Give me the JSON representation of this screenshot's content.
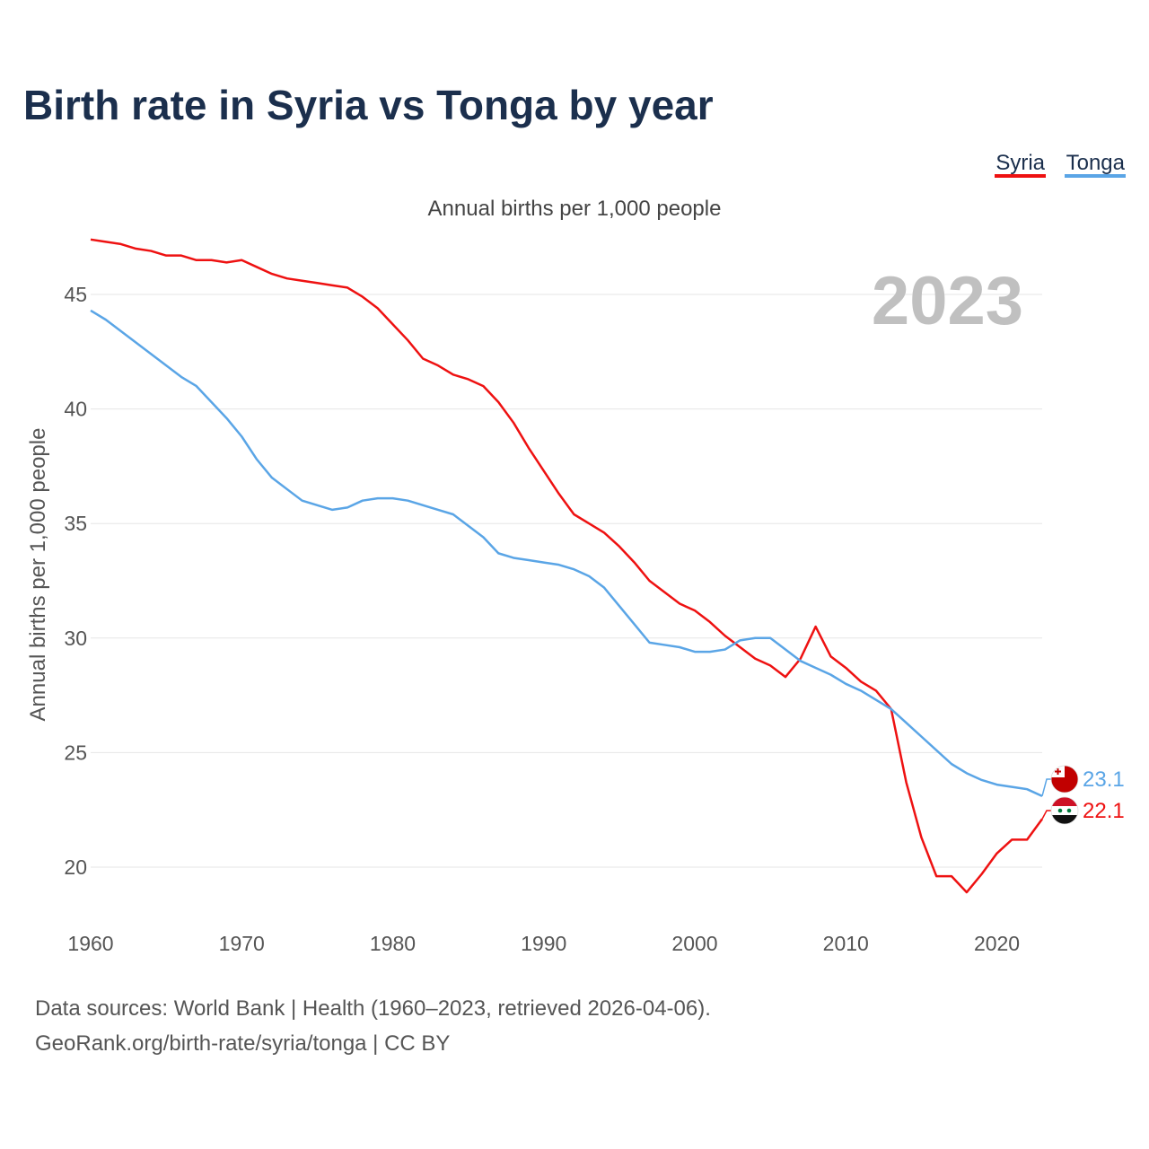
{
  "chart_data": {
    "type": "line",
    "title": "Birth rate in Syria vs Tonga by year",
    "subtitle": "Annual births per 1,000 people",
    "ylabel": "Annual births per 1,000 people",
    "xlabel": "",
    "year_label": "2023",
    "xlim": [
      1960,
      2023
    ],
    "ylim": [
      17,
      48
    ],
    "x_ticks": [
      "1960",
      "1970",
      "1980",
      "1990",
      "2000",
      "2010",
      "2020"
    ],
    "y_ticks": [
      "20",
      "25",
      "30",
      "35",
      "40",
      "45"
    ],
    "legend": {
      "position": "top-right",
      "entries": [
        "Syria",
        "Tonga"
      ]
    },
    "x": [
      1960,
      1961,
      1962,
      1963,
      1964,
      1965,
      1966,
      1967,
      1968,
      1969,
      1970,
      1971,
      1972,
      1973,
      1974,
      1975,
      1976,
      1977,
      1978,
      1979,
      1980,
      1981,
      1982,
      1983,
      1984,
      1985,
      1986,
      1987,
      1988,
      1989,
      1990,
      1991,
      1992,
      1993,
      1994,
      1995,
      1996,
      1997,
      1998,
      1999,
      2000,
      2001,
      2002,
      2003,
      2004,
      2005,
      2006,
      2007,
      2008,
      2009,
      2010,
      2011,
      2012,
      2013,
      2014,
      2015,
      2016,
      2017,
      2018,
      2019,
      2020,
      2021,
      2022,
      2023
    ],
    "series": [
      {
        "name": "Syria",
        "color": "#ee1111",
        "end_label": "22.1",
        "flag": "syria-flag-icon",
        "values": [
          47.4,
          47.3,
          47.2,
          47.0,
          46.9,
          46.7,
          46.7,
          46.5,
          46.5,
          46.4,
          46.5,
          46.2,
          45.9,
          45.7,
          45.6,
          45.5,
          45.4,
          45.3,
          44.9,
          44.4,
          43.7,
          43.0,
          42.2,
          41.9,
          41.5,
          41.3,
          41.0,
          40.3,
          39.4,
          38.3,
          37.3,
          36.3,
          35.4,
          35.0,
          34.6,
          34.0,
          33.3,
          32.5,
          32.0,
          31.5,
          31.2,
          30.7,
          30.1,
          29.6,
          29.1,
          28.8,
          28.3,
          29.1,
          30.5,
          29.2,
          28.7,
          28.1,
          27.7,
          26.9,
          23.7,
          21.3,
          19.6,
          19.6,
          18.9,
          19.7,
          20.6,
          21.2,
          21.2,
          22.1
        ]
      },
      {
        "name": "Tonga",
        "color": "#5aa5e6",
        "end_label": "23.1",
        "flag": "tonga-flag-icon",
        "values": [
          44.3,
          43.9,
          43.4,
          42.9,
          42.4,
          41.9,
          41.4,
          41.0,
          40.3,
          39.6,
          38.8,
          37.8,
          37.0,
          36.5,
          36.0,
          35.8,
          35.6,
          35.7,
          36.0,
          36.1,
          36.1,
          36.0,
          35.8,
          35.6,
          35.4,
          34.9,
          34.4,
          33.7,
          33.5,
          33.4,
          33.3,
          33.2,
          33.0,
          32.7,
          32.2,
          31.4,
          30.6,
          29.8,
          29.7,
          29.6,
          29.4,
          29.4,
          29.5,
          29.9,
          30.0,
          30.0,
          29.5,
          29.0,
          28.7,
          28.4,
          28.0,
          27.7,
          27.3,
          26.9,
          26.3,
          25.7,
          25.1,
          24.5,
          24.1,
          23.8,
          23.6,
          23.5,
          23.4,
          23.1
        ]
      }
    ]
  },
  "source": {
    "line1": "Data sources: World Bank | Health (1960–2023, retrieved 2026-04-06).",
    "line2": "GeoRank.org/birth-rate/syria/tonga | CC BY"
  }
}
